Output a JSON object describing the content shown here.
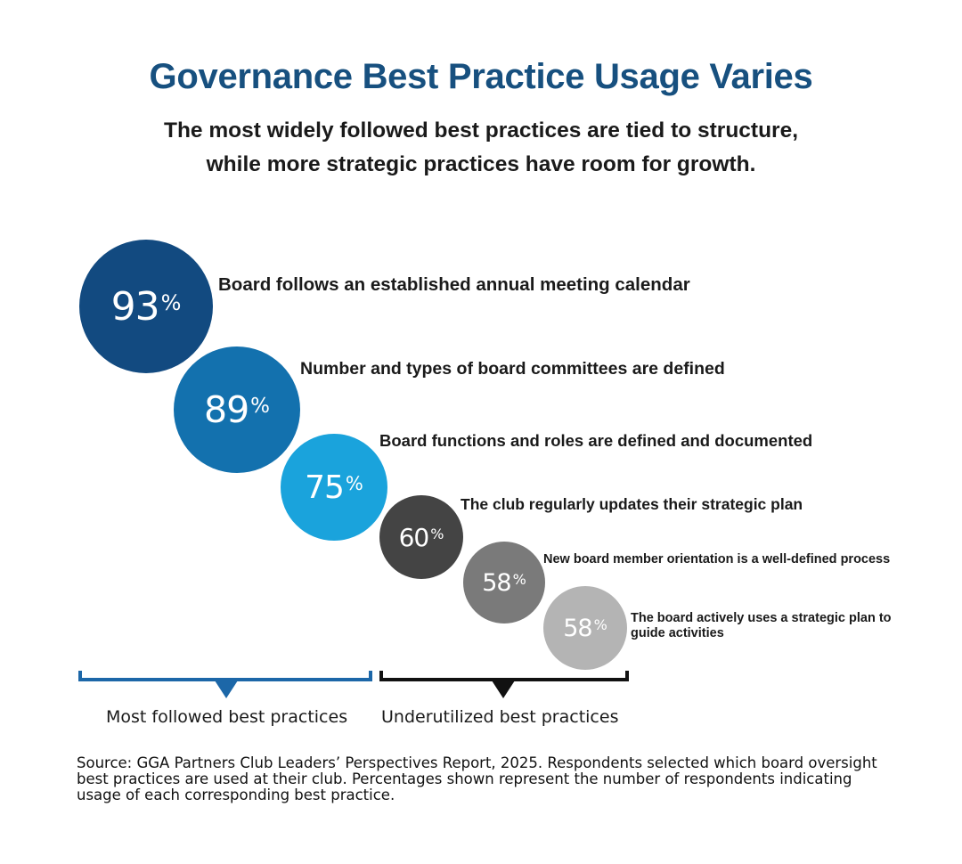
{
  "title": "Governance Best Practice Usage Varies",
  "subtitle": {
    "line1": "The most widely followed best practices are tied to structure,",
    "line2": "while more strategic practices have room for growth."
  },
  "chart_data": {
    "type": "bubble",
    "unit": "%",
    "items": [
      {
        "label": "Board follows an established annual meeting calendar",
        "value": 93,
        "color": "#124a80"
      },
      {
        "label": "Number and types of board committees are defined",
        "value": 89,
        "color": "#1371ae"
      },
      {
        "label": "Board functions and roles are defined and documented",
        "value": 75,
        "color": "#1aa3dc"
      },
      {
        "label": "The club regularly updates their strategic plan",
        "value": 60,
        "color": "#444444"
      },
      {
        "label": "New board member orientation is a well-defined process",
        "value": 58,
        "color": "#7a7a7a"
      },
      {
        "label": "The board actively uses a  strategic plan to guide activities",
        "value": 58,
        "color": "#b4b4b4"
      }
    ]
  },
  "groups": {
    "most_followed": "Most followed best practices",
    "underutilized": "Underutilized best practices",
    "most_followed_color": "#1c67a8",
    "underutilized_color": "#111111"
  },
  "source": "Source: GGA Partners Club Leaders’ Perspectives Report, 2025. Respondents selected which board oversight best practices are used at their club.  Percentages shown represent the number of respondents indicating usage of each corresponding best practice."
}
